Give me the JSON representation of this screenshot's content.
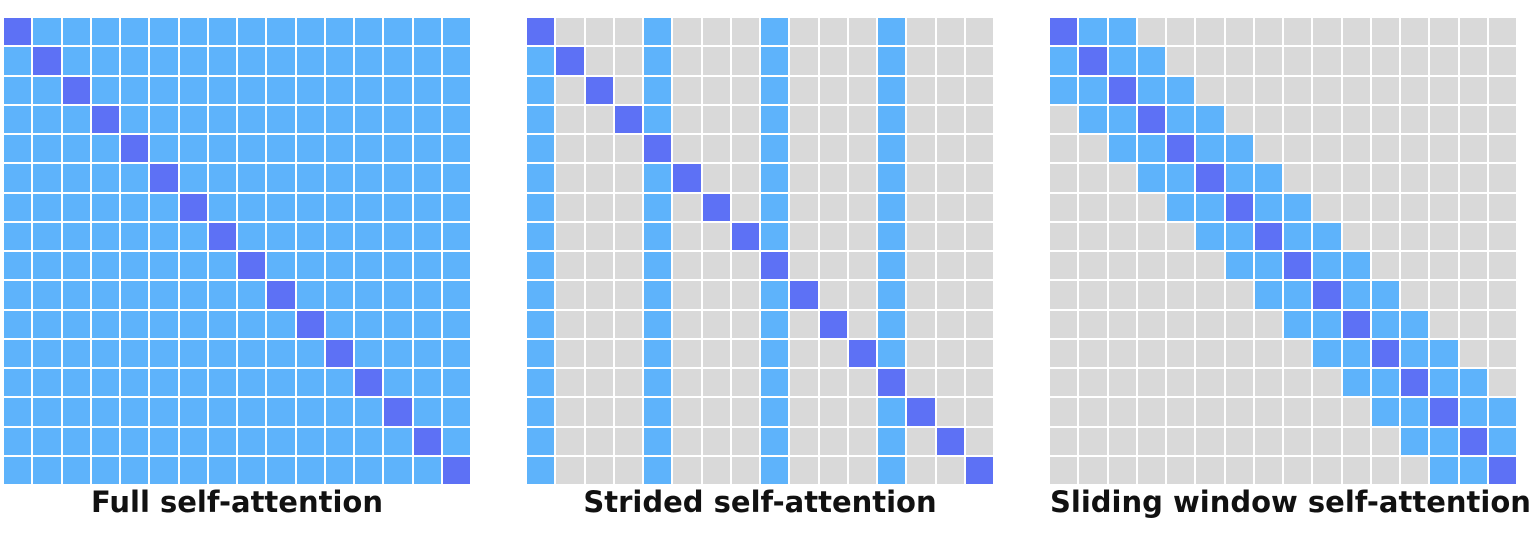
{
  "grid_size": 16,
  "colors": {
    "diagonal": "#5D71F5",
    "attended": "#5EB3FB",
    "masked": "#D9D9D9"
  },
  "panels": [
    {
      "id": "full",
      "caption": "Full self-attention",
      "pattern": "full"
    },
    {
      "id": "strided",
      "caption": "Strided self-attention",
      "pattern": "strided",
      "stride": 4
    },
    {
      "id": "sliding",
      "caption": "Sliding window self-attention",
      "pattern": "sliding",
      "window_radius": 2
    }
  ]
}
